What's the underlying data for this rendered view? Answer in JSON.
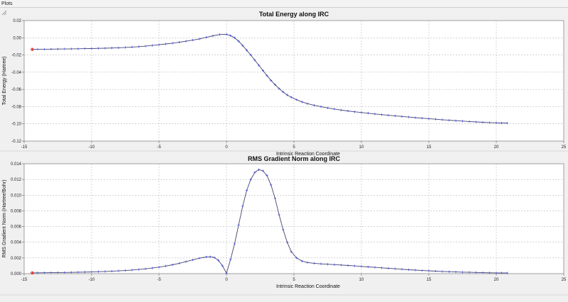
{
  "window": {
    "title": "Plots"
  },
  "chart_data": [
    {
      "type": "line",
      "title": "Total Energy along IRC",
      "xlabel": "Intrinsic Reaction Coordinate",
      "ylabel": "Total Energy (Hartree)",
      "xlim": [
        -15,
        25
      ],
      "ylim": [
        -0.12,
        0.02
      ],
      "xticks": [
        -15,
        -10,
        -5,
        0,
        5,
        10,
        15,
        20,
        25
      ],
      "yticks": [
        0.02,
        0.0,
        -0.02,
        -0.04,
        -0.06,
        -0.08,
        -0.1,
        -0.12
      ],
      "ytick_labels": [
        "0.02",
        "0.00",
        "-0.02",
        "-0.04",
        "-0.06",
        "-0.08",
        "-0.10",
        "-0.12"
      ],
      "grid": true,
      "line_color": "#44446a",
      "marker_color": "#4a52d8",
      "highlight_color": "#e02020",
      "highlight_index": 0,
      "series": [
        {
          "x": [
            -14.4,
            -14,
            -13.5,
            -13,
            -12.5,
            -12,
            -11.5,
            -11,
            -10.5,
            -10,
            -9.5,
            -9,
            -8.5,
            -8,
            -7.5,
            -7,
            -6.5,
            -6,
            -5.5,
            -5,
            -4.5,
            -4,
            -3.5,
            -3,
            -2.5,
            -2,
            -1.5,
            -1,
            -0.5,
            0,
            0.3,
            0.6,
            0.9,
            1.2,
            1.5,
            1.8,
            2.1,
            2.4,
            2.7,
            3.0,
            3.3,
            3.6,
            3.9,
            4.2,
            4.5,
            4.8,
            5.2,
            5.6,
            6.0,
            6.5,
            7,
            7.5,
            8,
            8.5,
            9,
            9.5,
            10,
            10.5,
            11,
            11.5,
            12,
            12.5,
            13,
            13.5,
            14,
            14.5,
            15,
            15.5,
            16,
            16.5,
            17,
            17.5,
            18,
            18.5,
            19,
            19.5,
            20,
            20.4,
            20.8
          ],
          "y": [
            -0.0135,
            -0.0134,
            -0.0133,
            -0.0132,
            -0.0131,
            -0.013,
            -0.0129,
            -0.0128,
            -0.0126,
            -0.0125,
            -0.0123,
            -0.0121,
            -0.0119,
            -0.0116,
            -0.0112,
            -0.0108,
            -0.0103,
            -0.0097,
            -0.0089,
            -0.0081,
            -0.0072,
            -0.0063,
            -0.0052,
            -0.004,
            -0.0027,
            -0.0013,
            0.0005,
            0.0023,
            0.0038,
            0.004,
            0.0025,
            0.0,
            -0.004,
            -0.009,
            -0.0145,
            -0.02,
            -0.026,
            -0.032,
            -0.038,
            -0.044,
            -0.0495,
            -0.0545,
            -0.059,
            -0.063,
            -0.0665,
            -0.069,
            -0.072,
            -0.0745,
            -0.0765,
            -0.0785,
            -0.08,
            -0.0815,
            -0.0828,
            -0.084,
            -0.085,
            -0.086,
            -0.0868,
            -0.0876,
            -0.0885,
            -0.0893,
            -0.09,
            -0.0907,
            -0.0914,
            -0.0921,
            -0.0928,
            -0.0934,
            -0.094,
            -0.0946,
            -0.0952,
            -0.0958,
            -0.0963,
            -0.0968,
            -0.0973,
            -0.0978,
            -0.0982,
            -0.0985,
            -0.0988,
            -0.099,
            -0.0992
          ]
        }
      ]
    },
    {
      "type": "line",
      "title": "RMS Gradient Norm along IRC",
      "xlabel": "Intrinsic Reaction Coordinate",
      "ylabel": "RMS Gradient Norm (Hartree/Bohr)",
      "xlim": [
        -15,
        25
      ],
      "ylim": [
        0,
        0.014
      ],
      "xticks": [
        -15,
        -10,
        -5,
        0,
        5,
        10,
        15,
        20,
        25
      ],
      "yticks": [
        0.014,
        0.012,
        0.01,
        0.008,
        0.006,
        0.004,
        0.002,
        0.0
      ],
      "ytick_labels": [
        "0.014",
        "0.012",
        "0.010",
        "0.008",
        "0.006",
        "0.004",
        "0.002",
        "0.000"
      ],
      "grid": true,
      "line_color": "#44446a",
      "marker_color": "#4a52d8",
      "highlight_color": "#e02020",
      "highlight_index": 0,
      "series": [
        {
          "x": [
            -14.4,
            -14,
            -13.5,
            -13,
            -12.5,
            -12,
            -11.5,
            -11,
            -10.5,
            -10,
            -9.5,
            -9,
            -8.5,
            -8,
            -7.5,
            -7,
            -6.5,
            -6,
            -5.5,
            -5,
            -4.5,
            -4,
            -3.5,
            -3,
            -2.5,
            -2,
            -1.5,
            -1.2,
            -0.9,
            -0.6,
            -0.3,
            0,
            0.3,
            0.6,
            0.9,
            1.2,
            1.5,
            1.8,
            2.1,
            2.4,
            2.7,
            3.0,
            3.3,
            3.6,
            3.9,
            4.2,
            4.5,
            4.8,
            5.2,
            5.6,
            6.0,
            6.5,
            7,
            7.5,
            8,
            8.5,
            9,
            9.5,
            10,
            10.5,
            11,
            11.5,
            12,
            12.5,
            13,
            13.5,
            14,
            14.5,
            15,
            15.5,
            16,
            16.5,
            17,
            17.5,
            18,
            18.5,
            19,
            19.5,
            20,
            20.4,
            20.8
          ],
          "y": [
            0.0001,
            0.00011,
            0.00012,
            0.00013,
            0.00014,
            0.00015,
            0.00016,
            0.00018,
            0.0002,
            0.00022,
            0.00025,
            0.00028,
            0.00031,
            0.00035,
            0.0004,
            0.00046,
            0.00053,
            0.00061,
            0.00071,
            0.00083,
            0.00097,
            0.00113,
            0.00132,
            0.00153,
            0.00175,
            0.00197,
            0.00212,
            0.00215,
            0.00205,
            0.0017,
            0.001,
            5e-05,
            0.0018,
            0.0038,
            0.0062,
            0.0086,
            0.0106,
            0.012,
            0.0129,
            0.01325,
            0.0131,
            0.0125,
            0.0113,
            0.0096,
            0.0075,
            0.0056,
            0.004,
            0.0028,
            0.002,
            0.0016,
            0.00142,
            0.00132,
            0.00125,
            0.0012,
            0.00115,
            0.0011,
            0.00104,
            0.00098,
            0.00092,
            0.00086,
            0.0008,
            0.00074,
            0.00068,
            0.00062,
            0.00056,
            0.0005,
            0.00045,
            0.0004,
            0.00036,
            0.00032,
            0.00028,
            0.00025,
            0.00022,
            0.00019,
            0.00017,
            0.00015,
            0.00013,
            0.00011,
            0.0001,
            9e-05,
            8e-05
          ]
        }
      ]
    }
  ]
}
